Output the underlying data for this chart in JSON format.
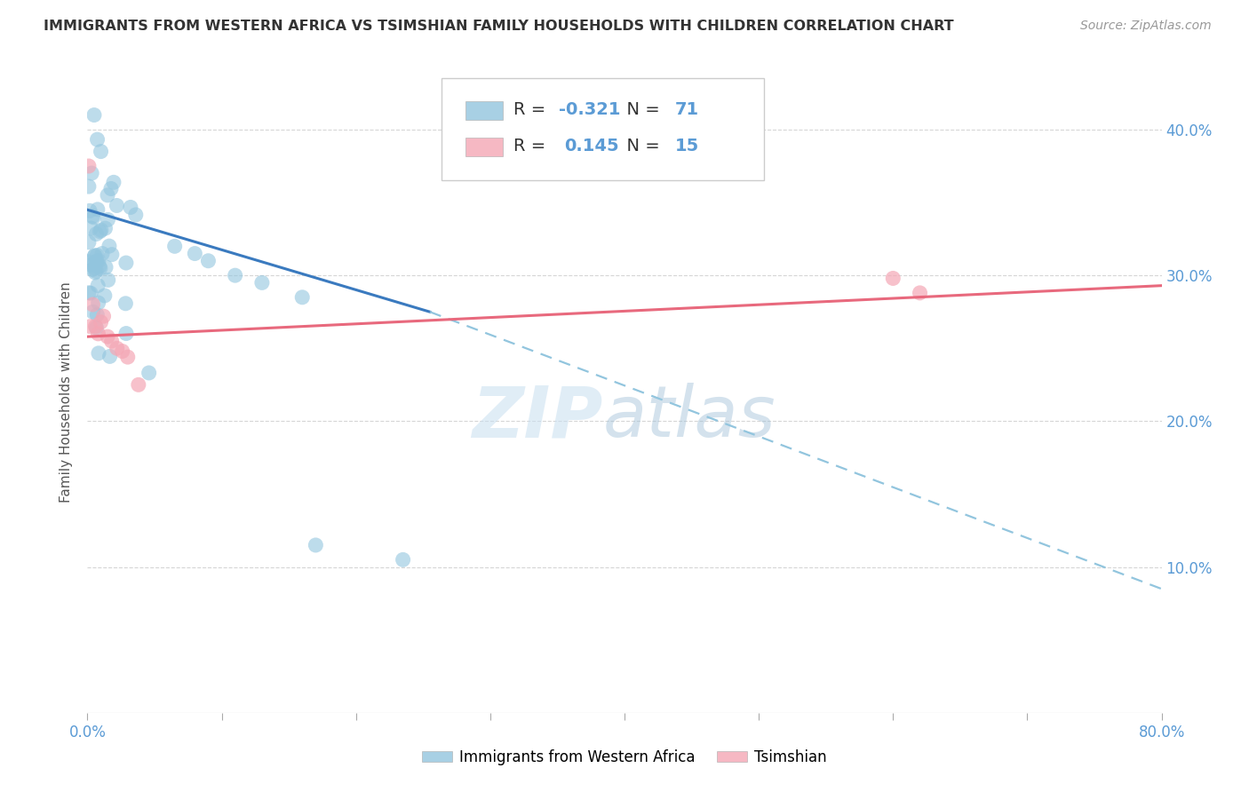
{
  "title": "IMMIGRANTS FROM WESTERN AFRICA VS TSIMSHIAN FAMILY HOUSEHOLDS WITH CHILDREN CORRELATION CHART",
  "source": "Source: ZipAtlas.com",
  "ylabel": "Family Households with Children",
  "legend_label1": "Immigrants from Western Africa",
  "legend_label2": "Tsimshian",
  "R1": "-0.321",
  "N1": "71",
  "R2": "0.145",
  "N2": "15",
  "blue_color": "#92c5de",
  "pink_color": "#f4a7b5",
  "line_blue_color": "#3a7abf",
  "line_pink_color": "#e8697d",
  "line_blue_dashed_color": "#92c5de",
  "xlim": [
    0.0,
    0.8
  ],
  "ylim": [
    0.0,
    0.44
  ],
  "x_ticks": [
    0.0,
    0.1,
    0.2,
    0.3,
    0.4,
    0.5,
    0.6,
    0.7,
    0.8
  ],
  "y_ticks": [
    0.1,
    0.2,
    0.3,
    0.4
  ],
  "axis_label_color": "#5b9bd5",
  "background_color": "#ffffff",
  "grid_color": "#cccccc",
  "title_color": "#333333",
  "text_dark": "#333333",
  "watermark_zip_color": "#c8dff0",
  "watermark_atlas_color": "#a0c0d8",
  "blue_trend_x0": 0.0,
  "blue_trend_y0": 0.345,
  "blue_trend_x1": 0.255,
  "blue_trend_y1": 0.275,
  "blue_trend_xd": 0.8,
  "blue_trend_yd": 0.085,
  "pink_trend_x0": 0.0,
  "pink_trend_y0": 0.258,
  "pink_trend_x1": 0.8,
  "pink_trend_y1": 0.293
}
